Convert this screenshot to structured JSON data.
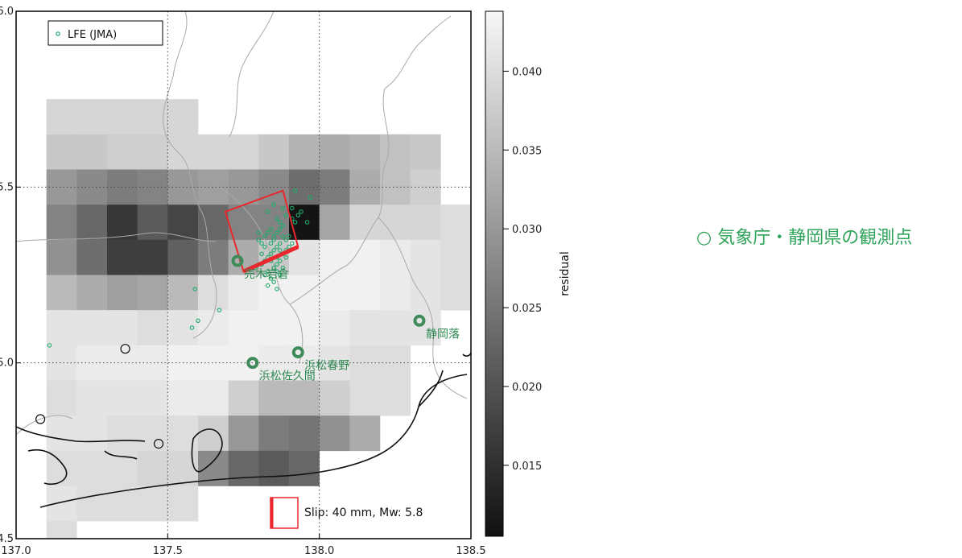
{
  "chart_data": {
    "type": "heatmap",
    "x_ticks": [
      "137.0",
      "137.5",
      "138.0",
      "138.5"
    ],
    "y_ticks": [
      "34.5",
      "35.0",
      "35.5",
      "36.0"
    ],
    "xlim": [
      137.0,
      138.5
    ],
    "ylim": [
      34.5,
      36.0
    ],
    "grid": true,
    "grid_lines": {
      "x": [
        137.5,
        138.0
      ],
      "y": [
        35.0,
        35.5
      ]
    },
    "colorbar": {
      "label": "residual",
      "ticks": [
        "0.015",
        "0.020",
        "0.025",
        "0.030",
        "0.035",
        "0.040"
      ],
      "range": [
        0.0105,
        0.0438
      ],
      "colors": [
        "#111111",
        "#f7f7f7"
      ]
    },
    "grid_cells": {
      "lon0": 137.0,
      "lat_top": 35.75,
      "dlon": 0.1,
      "dlat": 0.1,
      "rows": [
        [
          null,
          0.039,
          0.039,
          0.039,
          0.039,
          0.039,
          null,
          null,
          null,
          null,
          null,
          null,
          null,
          null,
          null
        ],
        [
          null,
          0.037,
          0.037,
          0.038,
          0.038,
          0.039,
          0.039,
          0.039,
          0.037,
          0.034,
          0.033,
          0.034,
          0.036,
          0.037,
          null
        ],
        [
          null,
          0.03,
          0.028,
          0.026,
          0.027,
          0.03,
          0.031,
          0.03,
          0.028,
          0.024,
          0.026,
          0.033,
          0.036,
          0.038,
          null
        ],
        [
          null,
          0.027,
          0.023,
          0.016,
          0.021,
          0.018,
          0.023,
          0.027,
          0.027,
          0.011,
          0.032,
          0.039,
          0.039,
          0.039,
          0.04
        ],
        [
          null,
          0.029,
          0.024,
          0.017,
          0.017,
          0.022,
          0.026,
          0.033,
          0.037,
          0.041,
          0.043,
          0.043,
          0.042,
          0.041,
          0.04
        ],
        [
          null,
          0.035,
          0.033,
          0.031,
          0.032,
          0.035,
          0.04,
          0.042,
          0.043,
          0.043,
          0.043,
          0.043,
          0.042,
          0.041,
          0.04
        ],
        [
          null,
          0.041,
          0.041,
          0.041,
          0.04,
          0.041,
          0.042,
          0.043,
          0.043,
          0.043,
          0.042,
          0.041,
          0.041,
          0.041,
          null
        ],
        [
          null,
          0.041,
          0.042,
          0.042,
          0.042,
          0.043,
          0.043,
          0.043,
          0.042,
          0.042,
          0.041,
          0.04,
          0.04,
          null,
          null
        ],
        [
          null,
          0.04,
          0.041,
          0.041,
          0.041,
          0.042,
          0.042,
          0.038,
          0.035,
          0.035,
          0.038,
          0.04,
          0.04,
          null,
          null
        ],
        [
          null,
          0.041,
          0.041,
          0.04,
          0.04,
          0.04,
          0.038,
          0.03,
          0.026,
          0.025,
          0.029,
          0.033,
          null,
          null,
          null
        ],
        [
          null,
          0.04,
          0.04,
          0.04,
          0.039,
          0.039,
          0.028,
          0.023,
          0.021,
          0.023,
          null,
          null,
          null,
          null,
          null
        ],
        [
          null,
          0.041,
          0.04,
          0.04,
          0.04,
          0.04,
          null,
          null,
          null,
          null,
          null,
          null,
          null,
          null,
          null
        ],
        [
          null,
          0.04,
          null,
          null,
          null,
          null,
          null,
          null,
          null,
          null,
          null,
          null,
          null,
          null,
          null
        ]
      ]
    },
    "fault": {
      "corners": [
        [
          137.69,
          35.43
        ],
        [
          137.88,
          35.49
        ],
        [
          137.93,
          35.33
        ],
        [
          137.75,
          35.26
        ]
      ],
      "upper_edge": [
        [
          137.75,
          35.26
        ],
        [
          137.93,
          35.33
        ]
      ],
      "color": "#e8282d"
    },
    "stations": [
      {
        "name": "売木岩倉",
        "lon": 137.73,
        "lat": 35.29
      },
      {
        "name": "浜松春野",
        "lon": 137.93,
        "lat": 35.03
      },
      {
        "name": "浜松佐久間",
        "lon": 137.78,
        "lat": 35.0
      },
      {
        "name": "静岡落",
        "lon": 138.33,
        "lat": 35.12
      }
    ],
    "other_sites": [
      {
        "lon": 137.36,
        "lat": 35.04
      },
      {
        "lon": 137.08,
        "lat": 34.84
      },
      {
        "lon": 137.47,
        "lat": 34.77
      }
    ],
    "series": [
      {
        "name": "LFE (JMA)",
        "color": "#1faa6a",
        "points": [
          [
            137.59,
            35.21
          ],
          [
            137.67,
            35.15
          ],
          [
            137.6,
            35.12
          ],
          [
            137.58,
            35.1
          ],
          [
            137.11,
            35.05
          ],
          [
            137.83,
            35.43
          ],
          [
            137.85,
            35.45
          ],
          [
            137.86,
            35.41
          ],
          [
            137.87,
            35.4
          ],
          [
            137.88,
            35.39
          ],
          [
            137.89,
            35.42
          ],
          [
            137.91,
            35.41
          ],
          [
            137.92,
            35.4
          ],
          [
            137.94,
            35.43
          ],
          [
            137.97,
            35.47
          ],
          [
            137.92,
            35.49
          ],
          [
            137.84,
            35.38
          ],
          [
            137.83,
            35.37
          ],
          [
            137.82,
            35.36
          ],
          [
            137.8,
            35.35
          ],
          [
            137.85,
            35.36
          ],
          [
            137.86,
            35.37
          ],
          [
            137.88,
            35.36
          ],
          [
            137.89,
            35.35
          ],
          [
            137.9,
            35.36
          ],
          [
            137.87,
            35.34
          ],
          [
            137.86,
            35.33
          ],
          [
            137.85,
            35.32
          ],
          [
            137.84,
            35.31
          ],
          [
            137.83,
            35.3
          ],
          [
            137.82,
            35.29
          ],
          [
            137.81,
            35.28
          ],
          [
            137.8,
            35.28
          ],
          [
            137.84,
            35.29
          ],
          [
            137.86,
            35.3
          ],
          [
            137.88,
            35.31
          ],
          [
            137.89,
            35.32
          ],
          [
            137.9,
            35.33
          ],
          [
            137.91,
            35.34
          ],
          [
            137.87,
            35.29
          ],
          [
            137.86,
            35.28
          ],
          [
            137.85,
            35.27
          ],
          [
            137.83,
            35.26
          ],
          [
            137.82,
            35.25
          ],
          [
            137.84,
            35.24
          ],
          [
            137.85,
            35.23
          ],
          [
            137.83,
            35.22
          ],
          [
            137.86,
            35.21
          ],
          [
            137.87,
            35.25
          ],
          [
            137.88,
            35.27
          ],
          [
            137.85,
            35.35
          ],
          [
            137.87,
            35.38
          ],
          [
            137.79,
            35.27
          ],
          [
            137.81,
            35.31
          ],
          [
            137.91,
            35.44
          ],
          [
            137.93,
            35.42
          ],
          [
            137.96,
            35.4
          ],
          [
            137.8,
            35.37
          ],
          [
            137.81,
            35.34
          ],
          [
            137.88,
            35.44
          ],
          [
            137.84,
            35.34
          ],
          [
            137.86,
            35.26
          ],
          [
            137.89,
            35.3
          ],
          [
            137.82,
            35.33
          ],
          [
            137.87,
            35.32
          ]
        ]
      }
    ],
    "legend": {
      "position": "top-left"
    },
    "scale": {
      "text": "Slip: 40 mm, Mw: 5.8"
    },
    "annotation": "○ 気象庁・静岡県の観測点"
  }
}
